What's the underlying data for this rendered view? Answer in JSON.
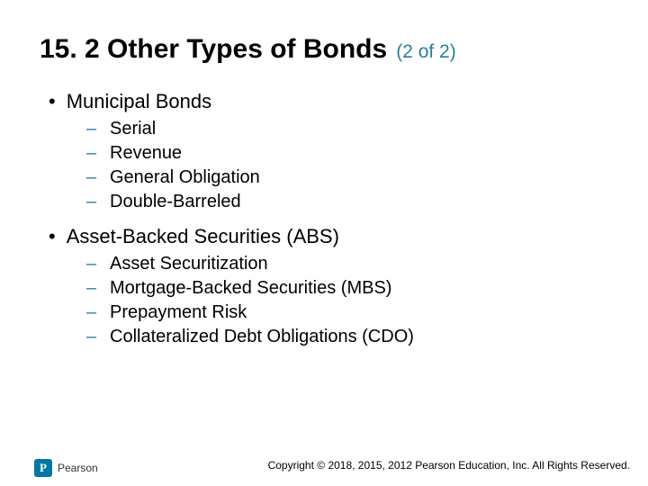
{
  "colors": {
    "accent": "#2b7f9d",
    "brand": "#0078a4",
    "text": "#000000",
    "background": "#ffffff"
  },
  "typography": {
    "font_family": "Arial",
    "title_fontsize": 30,
    "pager_fontsize": 21,
    "level1_fontsize": 22,
    "level2_fontsize": 20,
    "footer_fontsize": 12
  },
  "title": "15. 2 Other Types of Bonds",
  "pager": "(2 of 2)",
  "sections": [
    {
      "label": "Municipal Bonds",
      "items": [
        "Serial",
        "Revenue",
        "General Obligation",
        "Double-Barreled"
      ]
    },
    {
      "label": "Asset-Backed Securities (ABS)",
      "items": [
        "Asset Securitization",
        "Mortgage-Backed Securities (MBS)",
        "Prepayment Risk",
        "Collateralized Debt Obligations (CDO)"
      ]
    }
  ],
  "footer": "Copyright © 2018, 2015, 2012 Pearson Education, Inc. All Rights Reserved.",
  "brand": {
    "mark": "P",
    "name": "Pearson"
  }
}
